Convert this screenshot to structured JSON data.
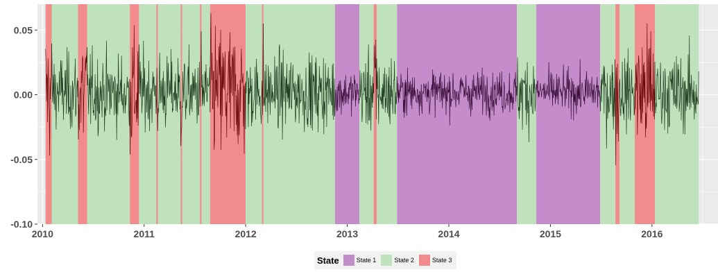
{
  "chart_data": {
    "type": "line",
    "title": "",
    "xlabel": "",
    "ylabel": "",
    "xlim": [
      2009.95,
      2016.65
    ],
    "ylim": [
      -0.1,
      0.07
    ],
    "x_ticks": [
      2010,
      2011,
      2012,
      2013,
      2014,
      2015,
      2016
    ],
    "x_tick_labels": [
      "2010",
      "2011",
      "2012",
      "2013",
      "2014",
      "2015",
      "2016"
    ],
    "y_ticks": [
      -0.1,
      -0.05,
      0.0,
      0.05
    ],
    "y_tick_labels": [
      "-0.10",
      "-0.05",
      "0.00",
      "0.05"
    ],
    "grid": true,
    "legend": {
      "position": "bottom",
      "title": "State",
      "items": [
        {
          "label": "State 1",
          "color": "#c48ccb"
        },
        {
          "label": "State 2",
          "color": "#bfe1bc"
        },
        {
          "label": "State 3",
          "color": "#f28b8b"
        }
      ]
    },
    "state_colors": {
      "1": "#c48ccb",
      "2": "#bfe1bc",
      "3": "#f28b8b"
    },
    "state_periods": [
      {
        "start": 2010.03,
        "end": 2010.09,
        "state": 3
      },
      {
        "start": 2010.09,
        "end": 2010.35,
        "state": 2
      },
      {
        "start": 2010.35,
        "end": 2010.44,
        "state": 3
      },
      {
        "start": 2010.44,
        "end": 2010.86,
        "state": 2
      },
      {
        "start": 2010.86,
        "end": 2010.95,
        "state": 3
      },
      {
        "start": 2010.95,
        "end": 2011.12,
        "state": 2
      },
      {
        "start": 2011.12,
        "end": 2011.135,
        "state": 3
      },
      {
        "start": 2011.135,
        "end": 2011.36,
        "state": 2
      },
      {
        "start": 2011.36,
        "end": 2011.375,
        "state": 3
      },
      {
        "start": 2011.375,
        "end": 2011.55,
        "state": 2
      },
      {
        "start": 2011.55,
        "end": 2011.565,
        "state": 3
      },
      {
        "start": 2011.565,
        "end": 2011.65,
        "state": 2
      },
      {
        "start": 2011.65,
        "end": 2012.0,
        "state": 3
      },
      {
        "start": 2012.0,
        "end": 2012.16,
        "state": 2
      },
      {
        "start": 2012.16,
        "end": 2012.175,
        "state": 3
      },
      {
        "start": 2012.175,
        "end": 2012.88,
        "state": 2
      },
      {
        "start": 2012.88,
        "end": 2013.12,
        "state": 1
      },
      {
        "start": 2013.12,
        "end": 2013.26,
        "state": 2
      },
      {
        "start": 2013.26,
        "end": 2013.29,
        "state": 3
      },
      {
        "start": 2013.29,
        "end": 2013.49,
        "state": 2
      },
      {
        "start": 2013.49,
        "end": 2014.67,
        "state": 1
      },
      {
        "start": 2014.67,
        "end": 2014.86,
        "state": 2
      },
      {
        "start": 2014.86,
        "end": 2015.49,
        "state": 1
      },
      {
        "start": 2015.49,
        "end": 2015.64,
        "state": 2
      },
      {
        "start": 2015.64,
        "end": 2015.68,
        "state": 3
      },
      {
        "start": 2015.68,
        "end": 2015.83,
        "state": 2
      },
      {
        "start": 2015.83,
        "end": 2016.03,
        "state": 3
      },
      {
        "start": 2016.03,
        "end": 2016.46,
        "state": 2
      }
    ],
    "series": [
      {
        "x_start": 2010.03,
        "x_end": 2016.46,
        "points_per_year": 250,
        "volatility_by_state": {
          "1": 0.009,
          "2": 0.016,
          "3": 0.028
        },
        "line_colors_by_state": {
          "1": "#3a0f3a",
          "2": "#1f3d1f",
          "3": "#6b0a0a"
        }
      }
    ]
  }
}
